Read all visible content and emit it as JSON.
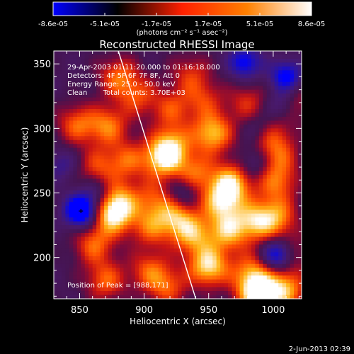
{
  "chart_data": {
    "type": "heatmap",
    "title": "Reconstructed RHESSI Image",
    "xlabel": "Heliocentric X (arcsec)",
    "ylabel": "Heliocentric Y (arcsec)",
    "xlim": [
      830,
      1022
    ],
    "ylim": [
      168,
      360
    ],
    "x_ticks": [
      850,
      900,
      950,
      1000
    ],
    "y_ticks": [
      200,
      250,
      300,
      350
    ],
    "colorbar": {
      "ticks": [
        "-8.6e-05",
        "-5.1e-05",
        "-1.7e-05",
        "1.7e-05",
        "5.1e-05",
        "8.6e-05"
      ],
      "min": -8.6e-05,
      "max": 8.6e-05,
      "unit_label": "(photons cm⁻² s⁻¹ asec⁻²)",
      "colors": [
        "#0000ff",
        "#000000",
        "#ff2000",
        "#ff8000",
        "#ffffff"
      ]
    },
    "annotations": [
      "29-Apr-2003 01:11:20.000 to 01:16:18.000",
      "Detectors: 4F 5F 6F 7F 8F, Att 0",
      "Energy Range: 25.0 - 50.0 keV",
      "Clean       Total counts: 3.70E+03"
    ],
    "peak_label": "Position of Peak = [988,171]",
    "peak": [
      988,
      171
    ],
    "limb_line": [
      [
        880,
        360
      ],
      [
        940,
        168
      ]
    ],
    "positive_sources": [
      {
        "x": 848,
        "y": 303,
        "a": 0.55
      },
      {
        "x": 872,
        "y": 302,
        "a": 0.6
      },
      {
        "x": 880,
        "y": 340,
        "a": 0.55
      },
      {
        "x": 895,
        "y": 325,
        "a": 0.45
      },
      {
        "x": 921,
        "y": 315,
        "a": 0.45
      },
      {
        "x": 936,
        "y": 342,
        "a": 0.4
      },
      {
        "x": 946,
        "y": 322,
        "a": 0.4
      },
      {
        "x": 922,
        "y": 288,
        "a": 0.55
      },
      {
        "x": 953,
        "y": 296,
        "a": 0.8
      },
      {
        "x": 915,
        "y": 277,
        "a": 0.85
      },
      {
        "x": 887,
        "y": 275,
        "a": 0.5
      },
      {
        "x": 864,
        "y": 270,
        "a": 0.45
      },
      {
        "x": 940,
        "y": 265,
        "a": 0.55
      },
      {
        "x": 968,
        "y": 258,
        "a": 0.8
      },
      {
        "x": 960,
        "y": 243,
        "a": 0.75
      },
      {
        "x": 880,
        "y": 245,
        "a": 0.55
      },
      {
        "x": 907,
        "y": 245,
        "a": 0.45
      },
      {
        "x": 876,
        "y": 233,
        "a": 0.85
      },
      {
        "x": 861,
        "y": 210,
        "a": 0.55
      },
      {
        "x": 905,
        "y": 223,
        "a": 0.5
      },
      {
        "x": 925,
        "y": 231,
        "a": 0.65
      },
      {
        "x": 938,
        "y": 217,
        "a": 0.65
      },
      {
        "x": 965,
        "y": 220,
        "a": 0.7
      },
      {
        "x": 986,
        "y": 228,
        "a": 0.7
      },
      {
        "x": 1003,
        "y": 258,
        "a": 0.55
      },
      {
        "x": 1003,
        "y": 231,
        "a": 0.6
      },
      {
        "x": 1005,
        "y": 278,
        "a": 0.4
      },
      {
        "x": 950,
        "y": 193,
        "a": 0.9
      },
      {
        "x": 983,
        "y": 188,
        "a": 0.6
      },
      {
        "x": 870,
        "y": 182,
        "a": 0.55
      },
      {
        "x": 904,
        "y": 190,
        "a": 0.5
      },
      {
        "x": 918,
        "y": 177,
        "a": 0.5
      },
      {
        "x": 988,
        "y": 171,
        "a": 1.0
      },
      {
        "x": 1009,
        "y": 175,
        "a": 0.75
      },
      {
        "x": 998,
        "y": 295,
        "a": 0.5
      },
      {
        "x": 980,
        "y": 320,
        "a": 0.4
      },
      {
        "x": 1015,
        "y": 320,
        "a": 0.45
      },
      {
        "x": 1012,
        "y": 203,
        "a": 0.45
      }
    ],
    "negative_sources": [
      {
        "x": 851,
        "y": 236,
        "a": 1.0
      },
      {
        "x": 1004,
        "y": 202,
        "a": 0.95
      },
      {
        "x": 978,
        "y": 351,
        "a": 0.65
      },
      {
        "x": 1010,
        "y": 340,
        "a": 0.7
      },
      {
        "x": 1007,
        "y": 318,
        "a": 0.5
      },
      {
        "x": 865,
        "y": 250,
        "a": 0.35
      },
      {
        "x": 836,
        "y": 272,
        "a": 0.3
      },
      {
        "x": 930,
        "y": 250,
        "a": 0.35
      },
      {
        "x": 985,
        "y": 272,
        "a": 0.3
      },
      {
        "x": 990,
        "y": 300,
        "a": 0.35
      }
    ]
  },
  "footer": {
    "timestamp": "2-Jun-2013 02:39"
  }
}
